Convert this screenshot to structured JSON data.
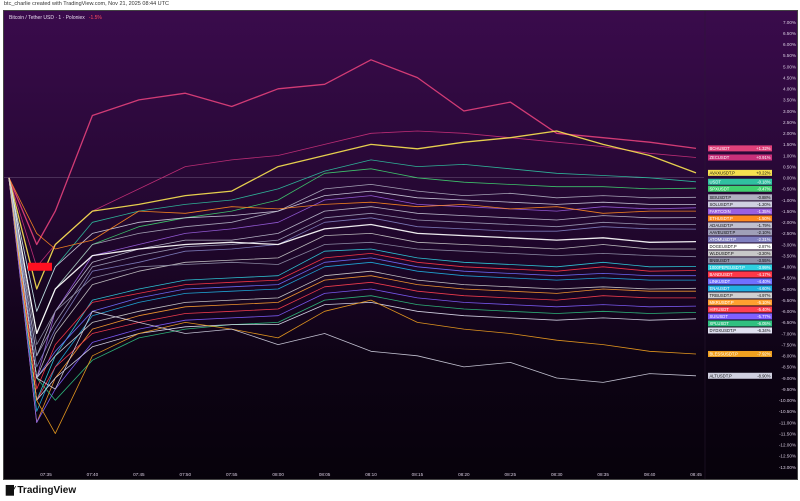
{
  "header": {
    "credit": "btc_charlie created with TradingView.com, Nov 21, 2025 08:44 UTC"
  },
  "legend": {
    "symbol": "Bitcoin / Tether USD · 1 · Poloniex",
    "change": "-1.5%"
  },
  "footer": {
    "brand": "TradingView",
    "logo_icon": "tradingview-logo-icon"
  },
  "colors": {
    "background_top": "#3a0b4c",
    "background_bottom": "#07020b",
    "axis_text": "#d8cce0"
  },
  "chart_data": {
    "type": "line",
    "title": "",
    "xlabel": "",
    "ylabel": "",
    "ylim": [
      -13.0,
      7.0
    ],
    "y_unit": "%",
    "grid": false,
    "legend": "price-axis labels (right)",
    "y_ticks": [
      "7.00%",
      "6.50%",
      "6.00%",
      "5.50%",
      "5.00%",
      "4.50%",
      "4.00%",
      "3.50%",
      "3.00%",
      "2.50%",
      "2.00%",
      "1.50%",
      "1.00%",
      "0.50%",
      "0.00%",
      "-0.50%",
      "-1.00%",
      "-1.50%",
      "-2.00%",
      "-2.50%",
      "-3.00%",
      "-3.50%",
      "-4.00%",
      "-4.50%",
      "-5.00%",
      "-5.50%",
      "-6.00%",
      "-6.50%",
      "-7.00%",
      "-7.50%",
      "-8.00%",
      "-8.50%",
      "-9.00%",
      "-9.50%",
      "-10.00%",
      "-10.50%",
      "-11.00%",
      "-11.50%",
      "-12.00%",
      "-12.50%",
      "-13.00%"
    ],
    "x_ticks": [
      "07:35",
      "07:40",
      "07:45",
      "07:50",
      "07:55",
      "08:00",
      "08:05",
      "08:10",
      "08:15",
      "08:20",
      "08:25",
      "08:30",
      "08:35",
      "08:40",
      "08:45"
    ],
    "x": [
      "07:31",
      "07:34",
      "07:36",
      "07:40",
      "07:45",
      "07:50",
      "07:55",
      "08:00",
      "08:05",
      "08:10",
      "08:15",
      "08:20",
      "08:25",
      "08:30",
      "08:35",
      "08:40",
      "08:45"
    ],
    "series": [
      {
        "name": "BCHUSDT",
        "label": "+1.32%",
        "color": "#e0407a",
        "values": [
          0,
          -3,
          -1.5,
          2.8,
          3.5,
          3.8,
          3.2,
          4.0,
          4.2,
          5.3,
          4.5,
          3.0,
          3.4,
          2.0,
          1.8,
          1.6,
          1.32
        ]
      },
      {
        "name": "ZECUSDT",
        "label": "+0.91%",
        "color": "#c8307a",
        "values": [
          0,
          -4,
          -3,
          -1.5,
          -0.5,
          0.5,
          0.8,
          1.0,
          1.5,
          2.0,
          2.1,
          2.0,
          1.8,
          1.6,
          1.4,
          1.1,
          0.91
        ]
      },
      {
        "name": "AVAXUSDT.P",
        "label": "+0.22%",
        "color": "#f5e050",
        "values": [
          0,
          -5,
          -3,
          -1.5,
          -1.2,
          -0.8,
          -0.6,
          0.5,
          1.0,
          1.5,
          1.3,
          1.6,
          1.8,
          2.1,
          1.5,
          1.0,
          0.22
        ]
      },
      {
        "name": "USDT",
        "label": "-0.18%",
        "color": "#30c0a0",
        "values": [
          0,
          -6,
          -4,
          -2,
          -1.5,
          -1.2,
          -1.0,
          -0.5,
          0.3,
          0.8,
          0.5,
          0.6,
          0.4,
          0.2,
          0.1,
          0,
          -0.18
        ]
      },
      {
        "name": "SPXUSDT",
        "label": "-0.47%",
        "color": "#40d070",
        "values": [
          0,
          -7,
          -5,
          -3,
          -2.2,
          -1.8,
          -1.5,
          -1.0,
          0.2,
          0.4,
          0,
          -0.2,
          -0.3,
          -0.4,
          -0.4,
          -0.5,
          -0.47
        ]
      },
      {
        "name": "SEIUSDT.P",
        "label": "-0.88%",
        "color": "#b0b0c0",
        "values": [
          0,
          -7,
          -5,
          -3,
          -2.5,
          -2.2,
          -2,
          -1.5,
          -0.5,
          -0.3,
          -0.6,
          -0.8,
          -0.7,
          -0.9,
          -0.8,
          -0.9,
          -0.88
        ]
      },
      {
        "name": "SOLUSDT.P",
        "label": "-1.20%",
        "color": "#d0d0e0",
        "values": [
          0,
          -6,
          -4,
          -2.5,
          -2,
          -1.8,
          -1.7,
          -1.5,
          -0.8,
          -0.6,
          -0.9,
          -1.0,
          -1.1,
          -1.2,
          -1.1,
          -1.2,
          -1.2
        ]
      },
      {
        "name": "FARTCOIN",
        "label": "-1.35%",
        "color": "#9a60e0",
        "values": [
          0,
          -9,
          -6,
          -3.5,
          -3,
          -2.5,
          -2.3,
          -2,
          -1,
          -0.8,
          -1.2,
          -1.3,
          -1.4,
          -1.5,
          -1.3,
          -1.4,
          -1.35
        ]
      },
      {
        "name": "ETHUSDT.P",
        "label": "-1.50%",
        "color": "#ff8a20",
        "values": [
          0,
          -2.5,
          -3.2,
          -2.8,
          -1.5,
          -1.6,
          -1.3,
          -1.4,
          -1.2,
          -1.1,
          -1.3,
          -1.2,
          -1.4,
          -1.3,
          -1.6,
          -1.5,
          -1.5
        ]
      },
      {
        "name": "ADAUSDT.P",
        "label": "-1.79%",
        "color": "#c0c0d0",
        "values": [
          0,
          -8,
          -6,
          -3.8,
          -3.2,
          -2.8,
          -2.8,
          -2.5,
          -1.5,
          -1.3,
          -1.6,
          -1.7,
          -1.8,
          -1.9,
          -1.7,
          -1.8,
          -1.79
        ]
      },
      {
        "name": "AAVEUSDT.P",
        "label": "-2.10%",
        "color": "#a0a0b8",
        "values": [
          0,
          -8,
          -6.5,
          -4,
          -3.5,
          -3.1,
          -3.0,
          -2.8,
          -1.8,
          -1.6,
          -1.9,
          -2.0,
          -2.1,
          -2.2,
          -2.0,
          -2.1,
          -2.1
        ]
      },
      {
        "name": "ATOMUSDT.P",
        "label": "-2.31%",
        "color": "#8080c0",
        "values": [
          0,
          -8.5,
          -6.8,
          -4.2,
          -3.8,
          -3.3,
          -3.2,
          -3.0,
          -2.0,
          -1.8,
          -2.2,
          -2.3,
          -2.4,
          -2.4,
          -2.2,
          -2.3,
          -2.31
        ]
      },
      {
        "name": "DOGEUSDT.P",
        "label": "-2.87%",
        "color": "#ffffff",
        "values": [
          0,
          -7,
          -5,
          -3.5,
          -3.2,
          -3.0,
          -2.9,
          -3.0,
          -2.3,
          -2.1,
          -2.5,
          -2.6,
          -2.7,
          -2.8,
          -2.7,
          -2.9,
          -2.87
        ]
      },
      {
        "name": "WLDUSDT.P",
        "label": "-3.20%",
        "color": "#c8c8c8",
        "values": [
          0,
          -9,
          -7,
          -4.8,
          -4.2,
          -3.8,
          -3.7,
          -3.6,
          -2.6,
          -2.5,
          -2.9,
          -3.0,
          -3.1,
          -3.2,
          -3.0,
          -3.2,
          -3.2
        ]
      },
      {
        "name": "BNBUSDT",
        "label": "-3.55%",
        "color": "#9090a8",
        "values": [
          0,
          -7.5,
          -6,
          -4.5,
          -4.0,
          -3.9,
          -3.8,
          -3.9,
          -3.0,
          -2.9,
          -3.2,
          -3.3,
          -3.4,
          -3.5,
          -3.4,
          -3.5,
          -3.55
        ]
      },
      {
        "name": "1000PEPEUSDT.P",
        "label": "-3.99%",
        "color": "#30d0e0",
        "values": [
          0,
          -10,
          -8,
          -5.5,
          -5,
          -4.6,
          -4.5,
          -4.4,
          -3.3,
          -3.2,
          -3.6,
          -3.8,
          -3.9,
          -4.0,
          -3.8,
          -4.0,
          -3.99
        ]
      },
      {
        "name": "BANDUSDT",
        "label": "-4.17%",
        "color": "#ff3848",
        "values": [
          0,
          -9.5,
          -7.5,
          -5.6,
          -5.2,
          -4.8,
          -4.7,
          -4.6,
          -3.6,
          -3.4,
          -3.8,
          -4.0,
          -4.1,
          -4.2,
          -4.0,
          -4.2,
          -4.17
        ]
      },
      {
        "name": "LINKUSDT",
        "label": "-4.40%",
        "color": "#7070ff",
        "values": [
          0,
          -9,
          -7.8,
          -6,
          -5.4,
          -5.0,
          -4.9,
          -4.8,
          -3.8,
          -3.6,
          -4.0,
          -4.2,
          -4.3,
          -4.4,
          -4.3,
          -4.4,
          -4.4
        ]
      },
      {
        "name": "ENAUSDT",
        "label": "-4.60%",
        "color": "#20b0e0",
        "values": [
          0,
          -10.5,
          -8.5,
          -6.2,
          -5.6,
          -5.2,
          -5.1,
          -5.0,
          -4.0,
          -3.8,
          -4.2,
          -4.4,
          -4.5,
          -4.6,
          -4.5,
          -4.6,
          -4.6
        ]
      },
      {
        "name": "TRBUSDT.P",
        "label": "-4.97%",
        "color": "#d0d0d0",
        "values": [
          0,
          -9,
          -8,
          -6.5,
          -6,
          -5.6,
          -5.5,
          -5.4,
          -4.4,
          -4.2,
          -4.6,
          -4.8,
          -4.9,
          -5.0,
          -4.9,
          -5.0,
          -4.97
        ]
      },
      {
        "name": "MKRUSDT.P",
        "label": "-5.10%",
        "color": "#ffa030",
        "values": [
          0,
          -11,
          -9,
          -6.8,
          -6.2,
          -5.8,
          -5.7,
          -5.6,
          -4.6,
          -4.4,
          -4.8,
          -5.0,
          -5.1,
          -5.2,
          -5.0,
          -5.1,
          -5.1
        ]
      },
      {
        "name": "HIFIUSDT",
        "label": "-5.40%",
        "color": "#ff4050",
        "values": [
          0,
          -10,
          -8.5,
          -7,
          -6.5,
          -6.1,
          -6.0,
          -5.9,
          -4.9,
          -4.7,
          -5.1,
          -5.3,
          -5.4,
          -5.5,
          -5.3,
          -5.4,
          -5.4
        ]
      },
      {
        "name": "SUIUSDT",
        "label": "-5.77%",
        "color": "#8060ff",
        "values": [
          0,
          -11,
          -9.5,
          -7.4,
          -6.8,
          -6.4,
          -6.3,
          -6.2,
          -5.2,
          -5.0,
          -5.4,
          -5.6,
          -5.7,
          -5.8,
          -5.7,
          -5.8,
          -5.77
        ]
      },
      {
        "name": "XPLUSDT",
        "label": "-6.05%",
        "color": "#30c080",
        "values": [
          0,
          -9,
          -10,
          -8.2,
          -7.2,
          -6.8,
          -6.6,
          -6.5,
          -5.5,
          -5.3,
          -5.7,
          -5.9,
          -6.0,
          -6.1,
          -6.0,
          -6.1,
          -6.05
        ]
      },
      {
        "name": "DYDXUSDT.P",
        "label": "-6.34%",
        "color": "#e0e0f0",
        "values": [
          0,
          -10,
          -9,
          -7.6,
          -7,
          -6.7,
          -6.6,
          -6.6,
          -5.7,
          -5.6,
          -6.0,
          -6.2,
          -6.3,
          -6.4,
          -6.3,
          -6.4,
          -6.34
        ]
      },
      {
        "name": "BLESSUSDT.P",
        "label": "-7.92%",
        "color": "#f0a020",
        "values": [
          0,
          -10,
          -11.5,
          -8,
          -7,
          -6.5,
          -6.8,
          -7.2,
          -6,
          -5.5,
          -6.5,
          -6.8,
          -7,
          -7.3,
          -7.5,
          -7.8,
          -7.92
        ]
      },
      {
        "name": "ALTUSDT.P",
        "label": "-8.90%",
        "color": "#d0d0e0",
        "values": [
          0,
          -9,
          -9.5,
          -6,
          -6.5,
          -7,
          -6.8,
          -7.5,
          -7.0,
          -7.8,
          -8,
          -8.5,
          -8.3,
          -9,
          -9.2,
          -8.8,
          -8.9
        ]
      }
    ]
  }
}
